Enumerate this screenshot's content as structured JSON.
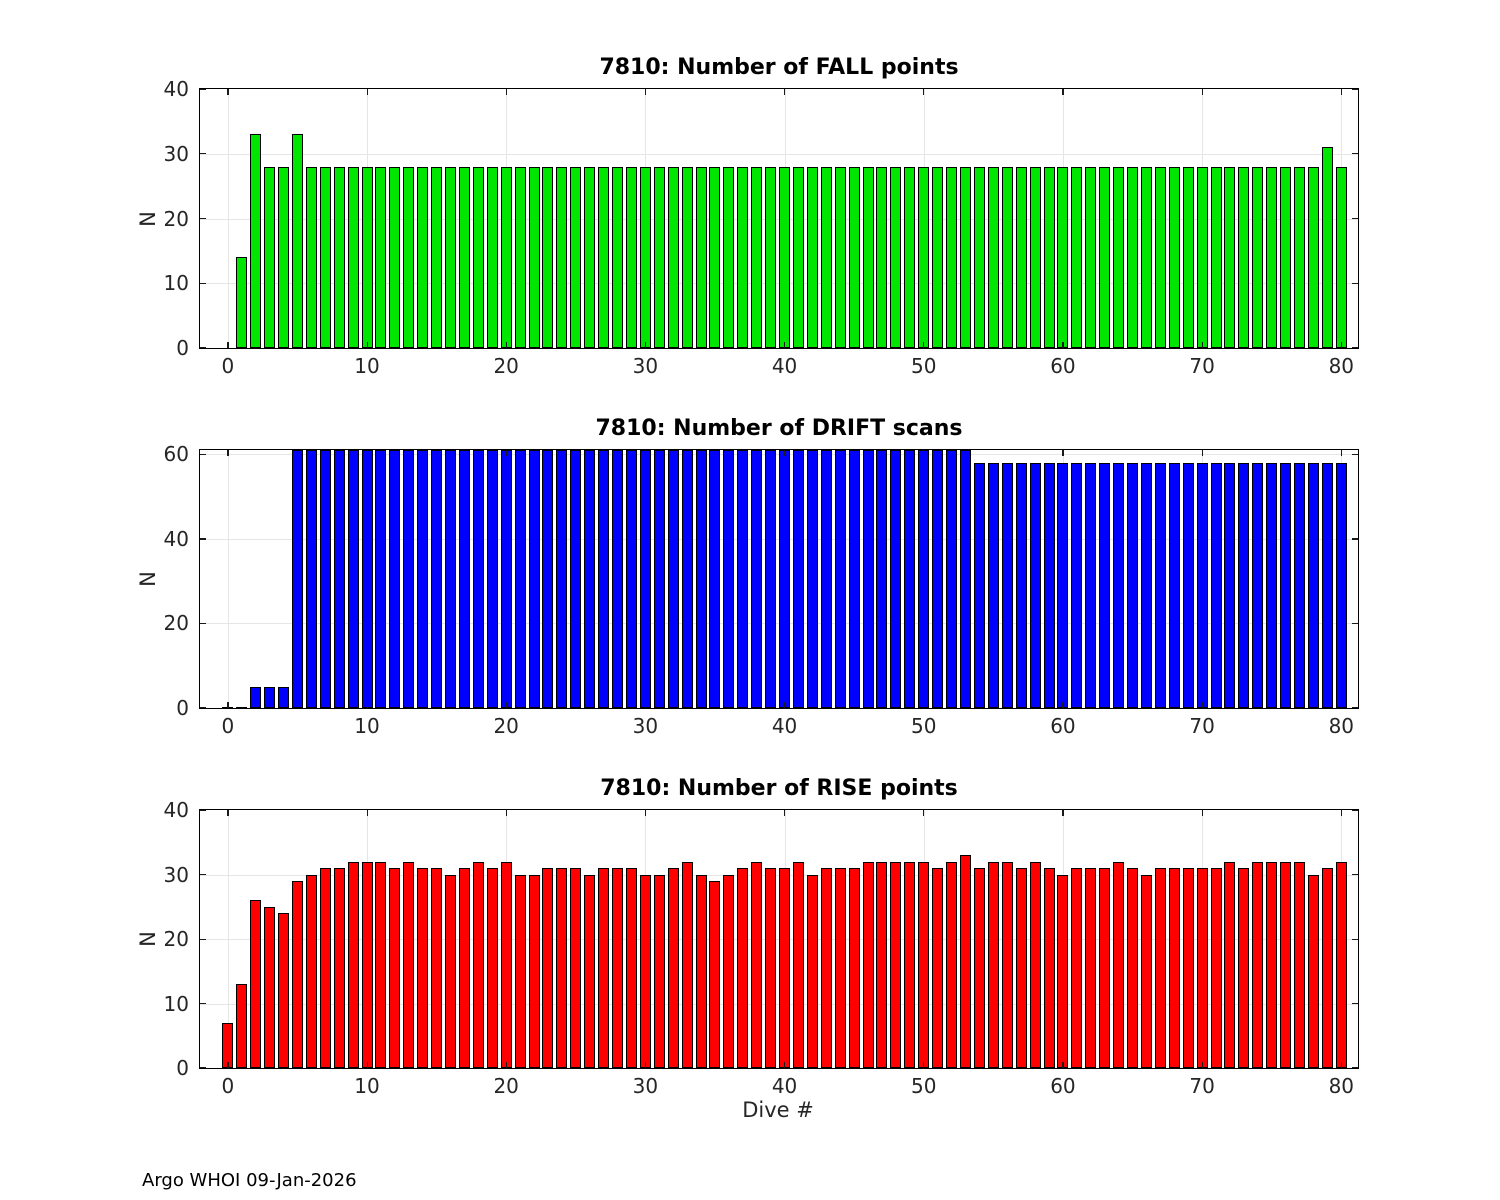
{
  "page": {
    "xlabel": "Dive #",
    "footer": "Argo WHOI 09-Jan-2026",
    "style": {
      "background": "#ffffff",
      "axis_text_color": "#262626",
      "frame_color": "#000000",
      "grid_color": "#e6e6e6",
      "fall_color": "#00e600",
      "drift_color": "#0000ff",
      "rise_color": "#ff0000"
    }
  },
  "chart_data": [
    {
      "type": "bar",
      "title": "7810: Number of FALL points",
      "ylabel": "N",
      "bar_color": "#00e600",
      "grid": true,
      "x_start": 1,
      "x_step": 1,
      "xlim": [
        -2,
        81.2
      ],
      "ylim": [
        0,
        40
      ],
      "yticks": [
        0,
        10,
        20,
        30,
        40
      ],
      "xticks": [
        0,
        10,
        20,
        30,
        40,
        50,
        60,
        70,
        80
      ],
      "values": [
        14,
        33,
        28,
        28,
        33,
        28,
        28,
        28,
        28,
        28,
        28,
        28,
        28,
        28,
        28,
        28,
        28,
        28,
        28,
        28,
        28,
        28,
        28,
        28,
        28,
        28,
        28,
        28,
        28,
        28,
        28,
        28,
        28,
        28,
        28,
        28,
        28,
        28,
        28,
        28,
        28,
        28,
        28,
        28,
        28,
        28,
        28,
        28,
        28,
        28,
        28,
        28,
        28,
        28,
        28,
        28,
        28,
        28,
        28,
        28,
        28,
        28,
        28,
        28,
        28,
        28,
        28,
        28,
        28,
        28,
        28,
        28,
        28,
        28,
        28,
        28,
        28,
        28,
        31,
        28
      ]
    },
    {
      "type": "bar",
      "title": "7810: Number of DRIFT scans",
      "ylabel": "N",
      "bar_color": "#0000ff",
      "grid": true,
      "x_start": 0,
      "x_step": 1,
      "xlim": [
        -2,
        81.2
      ],
      "ylim": [
        0,
        61
      ],
      "yticks": [
        0,
        20,
        40,
        60
      ],
      "xticks": [
        0,
        10,
        20,
        30,
        40,
        50,
        60,
        70,
        80
      ],
      "values": [
        0,
        0,
        5,
        5,
        5,
        61,
        61,
        61,
        61,
        61,
        61,
        61,
        61,
        61,
        61,
        61,
        61,
        61,
        61,
        61,
        61,
        61,
        61,
        61,
        61,
        61,
        61,
        61,
        61,
        61,
        61,
        61,
        61,
        61,
        61,
        61,
        61,
        61,
        61,
        61,
        61,
        61,
        61,
        61,
        61,
        61,
        61,
        61,
        61,
        61,
        61,
        61,
        61,
        61,
        58,
        58,
        58,
        58,
        58,
        58,
        58,
        58,
        58,
        58,
        58,
        58,
        58,
        58,
        58,
        58,
        58,
        58,
        58,
        58,
        58,
        58,
        58,
        58,
        58,
        58,
        58
      ]
    },
    {
      "type": "bar",
      "title": "7810: Number of RISE points",
      "ylabel": "N",
      "bar_color": "#ff0000",
      "grid": true,
      "x_start": 0,
      "x_step": 1,
      "xlim": [
        -2,
        81.2
      ],
      "ylim": [
        0,
        40
      ],
      "yticks": [
        0,
        10,
        20,
        30,
        40
      ],
      "xticks": [
        0,
        10,
        20,
        30,
        40,
        50,
        60,
        70,
        80
      ],
      "values": [
        7,
        13,
        26,
        25,
        24,
        29,
        30,
        31,
        31,
        32,
        32,
        32,
        31,
        32,
        31,
        31,
        30,
        31,
        32,
        31,
        32,
        30,
        30,
        31,
        31,
        31,
        30,
        31,
        31,
        31,
        30,
        30,
        31,
        32,
        30,
        29,
        30,
        31,
        32,
        31,
        31,
        32,
        30,
        31,
        31,
        31,
        32,
        32,
        32,
        32,
        32,
        31,
        32,
        33,
        31,
        32,
        32,
        31,
        32,
        31,
        30,
        31,
        31,
        31,
        32,
        31,
        30,
        31,
        31,
        31,
        31,
        31,
        32,
        31,
        32,
        32,
        32,
        32,
        30,
        31,
        32
      ]
    }
  ]
}
